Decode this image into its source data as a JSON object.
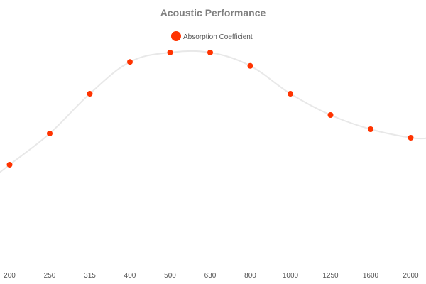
{
  "chart_data": {
    "type": "line",
    "title": "Acoustic Performance",
    "xlabel": "",
    "ylabel": "",
    "categories": [
      "200",
      "250",
      "315",
      "400",
      "500",
      "630",
      "800",
      "1000",
      "1250",
      "1600",
      "2000"
    ],
    "series": [
      {
        "name": "Absorption Coefficient",
        "values": [
          0.42,
          0.53,
          0.67,
          0.782,
          0.815,
          0.815,
          0.768,
          0.67,
          0.595,
          0.545,
          0.515
        ]
      }
    ],
    "ylim": [
      0,
      1
    ],
    "grid": false,
    "legend_position": "top-center",
    "line_shape": "smooth",
    "colors": {
      "line": "#e8e8e8",
      "marker": "#ff3300",
      "title": "#7f7f7f",
      "text": "#555555"
    }
  }
}
